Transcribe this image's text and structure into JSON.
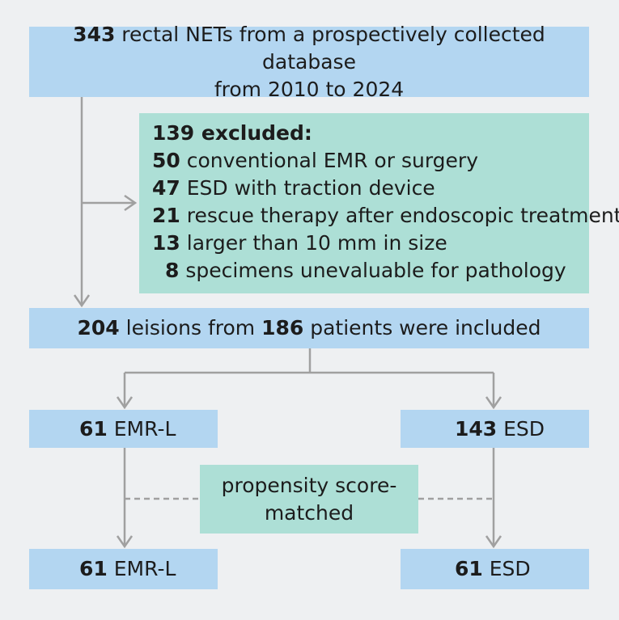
{
  "top_box": {
    "count": "343",
    "line1_text": " rectal NETs from a prospectively collected database",
    "line2_text": "from 2010 to 2024"
  },
  "excluded_box": {
    "header": "139 excluded:",
    "items": [
      {
        "count": "50",
        "text": " conventional EMR or surgery"
      },
      {
        "count": "47",
        "text": " ESD with traction device"
      },
      {
        "count": "21",
        "text": " rescue therapy after endoscopic treatment"
      },
      {
        "count": "13",
        "text": " larger than 10 mm in size"
      },
      {
        "count": "8",
        "text": " specimens unevaluable for pathology"
      }
    ]
  },
  "included_box": {
    "lesions_count": "204",
    "middle_text": " leisions from ",
    "patients_count": "186",
    "end_text": " patients were included"
  },
  "emr_l_box": {
    "count": "61",
    "label": " EMR-L"
  },
  "esd_box": {
    "count": "143",
    "label": " ESD"
  },
  "propensity_box": {
    "line1": "propensity score-",
    "line2": "matched"
  },
  "emr_l_matched_box": {
    "count": "61",
    "label": " EMR-L"
  },
  "esd_matched_box": {
    "count": "61",
    "label": " ESD"
  },
  "colors": {
    "background": "#eef0f2",
    "blue_box": "#b3d6f1",
    "teal_box": "#addfd6",
    "connector": "#a0a0a0"
  }
}
